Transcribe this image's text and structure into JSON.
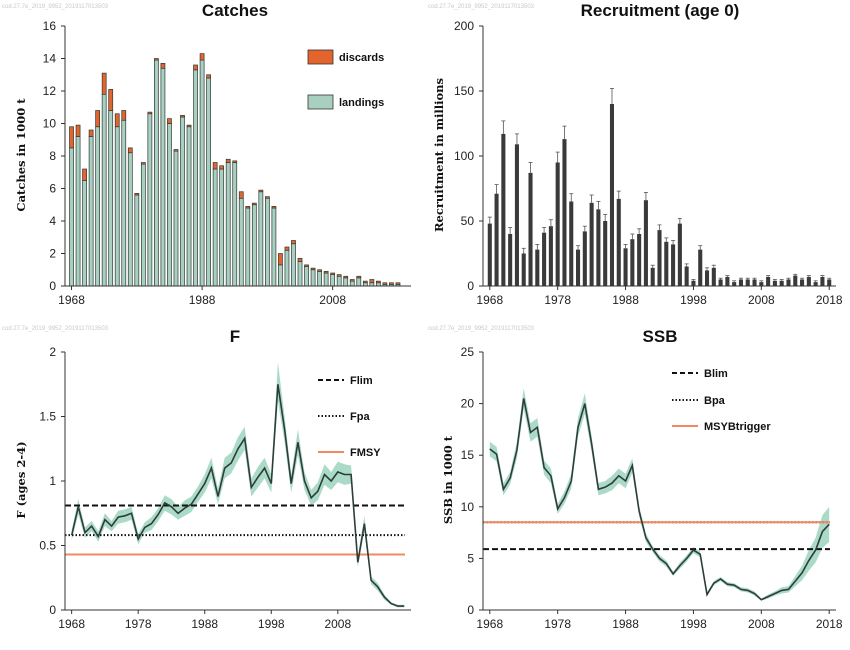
{
  "colors": {
    "landings": "#a9cfc0",
    "discards": "#e3642c",
    "recruitment_bar": "#3a3a3a",
    "band": "#8fcfb6",
    "line": "#2e3d38",
    "msy": "#ef8a62"
  },
  "watermark": "cod.27.7e_2019_9952_2019117013503",
  "chart_data": [
    {
      "id": "catches",
      "type": "bar",
      "title": "Catches",
      "ylabel": "Catches in 1000 t",
      "ylim": [
        0,
        16
      ],
      "yticks": [
        0,
        2,
        4,
        6,
        8,
        10,
        12,
        14,
        16
      ],
      "xticks": [
        "1968",
        "1988",
        "2008"
      ],
      "xrange": [
        1967,
        2020
      ],
      "legend": [
        {
          "name": "discards",
          "color": "#e3642c"
        },
        {
          "name": "landings",
          "color": "#a9cfc0"
        }
      ],
      "x": [
        1968,
        1969,
        1970,
        1971,
        1972,
        1973,
        1974,
        1975,
        1976,
        1977,
        1978,
        1979,
        1980,
        1981,
        1982,
        1983,
        1984,
        1985,
        1986,
        1987,
        1988,
        1989,
        1990,
        1991,
        1992,
        1993,
        1994,
        1995,
        1996,
        1997,
        1998,
        1999,
        2000,
        2001,
        2002,
        2003,
        2004,
        2005,
        2006,
        2007,
        2008,
        2009,
        2010,
        2011,
        2012,
        2013,
        2014,
        2015,
        2016,
        2017,
        2018
      ],
      "series": [
        {
          "name": "landings",
          "values": [
            8.5,
            9.2,
            6.5,
            9.2,
            9.8,
            11.8,
            10.8,
            9.8,
            10.2,
            8.2,
            5.6,
            7.5,
            10.6,
            13.9,
            13.4,
            10.0,
            8.3,
            10.4,
            9.8,
            13.3,
            13.9,
            12.8,
            7.2,
            7.2,
            7.6,
            7.6,
            5.4,
            4.8,
            5.0,
            5.8,
            5.4,
            4.8,
            1.3,
            2.2,
            2.6,
            1.5,
            1.2,
            1.0,
            0.9,
            0.8,
            0.7,
            0.6,
            0.5,
            0.3,
            0.5,
            0.2,
            0.2,
            0.2,
            0.1,
            0.1,
            0.1
          ]
        },
        {
          "name": "discards",
          "values": [
            1.3,
            0.7,
            0.7,
            0.4,
            1.0,
            1.3,
            1.3,
            0.8,
            0.6,
            0.3,
            0.1,
            0.1,
            0.1,
            0.1,
            0.3,
            0.3,
            0.1,
            0.1,
            0.1,
            0.3,
            0.4,
            0.2,
            0.4,
            0.2,
            0.2,
            0.1,
            0.4,
            0.1,
            0.1,
            0.1,
            0.1,
            0.1,
            0.7,
            0.2,
            0.2,
            0.2,
            0.1,
            0.1,
            0.1,
            0.1,
            0.1,
            0.1,
            0.1,
            0.1,
            0.1,
            0.1,
            0.2,
            0.1,
            0.1,
            0.1,
            0.1
          ]
        }
      ]
    },
    {
      "id": "recruitment",
      "type": "bar",
      "title": "Recruitment (age 0)",
      "ylabel": "Recruitment in millions",
      "ylim": [
        0,
        200
      ],
      "yticks": [
        0,
        50,
        100,
        150,
        200
      ],
      "xticks": [
        "1968",
        "1978",
        "1988",
        "1998",
        "2008",
        "2018"
      ],
      "xrange": [
        1967,
        2019
      ],
      "x": [
        1968,
        1969,
        1970,
        1971,
        1972,
        1973,
        1974,
        1975,
        1976,
        1977,
        1978,
        1979,
        1980,
        1981,
        1982,
        1983,
        1984,
        1985,
        1986,
        1987,
        1988,
        1989,
        1990,
        1991,
        1992,
        1993,
        1994,
        1995,
        1996,
        1997,
        1998,
        1999,
        2000,
        2001,
        2002,
        2003,
        2004,
        2005,
        2006,
        2007,
        2008,
        2009,
        2010,
        2011,
        2012,
        2013,
        2014,
        2015,
        2016,
        2017,
        2018
      ],
      "values": [
        48,
        71,
        117,
        40,
        109,
        25,
        87,
        28,
        41,
        46,
        95,
        113,
        65,
        28,
        42,
        64,
        59,
        50,
        140,
        67,
        29,
        36,
        40,
        66,
        14,
        43,
        34,
        32,
        48,
        15,
        4,
        28,
        12,
        14,
        5,
        7,
        3,
        5,
        5,
        5,
        3,
        7,
        4,
        4,
        5,
        8,
        5,
        7,
        3,
        7,
        5
      ],
      "errors": [
        5,
        7,
        10,
        5,
        8,
        4,
        8,
        4,
        4,
        5,
        8,
        10,
        6,
        3,
        4,
        6,
        6,
        5,
        12,
        6,
        3,
        4,
        4,
        6,
        2,
        4,
        3,
        3,
        4,
        2,
        1,
        3,
        2,
        2,
        1,
        1,
        1,
        1,
        1,
        1,
        1,
        1,
        1,
        1,
        1,
        1,
        1,
        1,
        1,
        1,
        1
      ]
    },
    {
      "id": "fishing-mortality",
      "type": "line",
      "title": "F",
      "ylabel": "F (ages 2-4)",
      "ylim": [
        0,
        2
      ],
      "yticks": [
        0,
        0.5,
        1,
        1.5,
        2
      ],
      "ytick_labels": [
        "0",
        "0.5",
        "1",
        "1.5",
        "2"
      ],
      "xticks": [
        "1968",
        "1978",
        "1988",
        "1998",
        "2008"
      ],
      "xrange": [
        1967,
        2019
      ],
      "legend": [
        {
          "name": "Flim",
          "style": "dashed"
        },
        {
          "name": "Fpa",
          "style": "dotted"
        },
        {
          "name": "FMSY",
          "style": "solid-orange"
        }
      ],
      "reference_lines": {
        "Flim": 0.81,
        "Fpa": 0.58,
        "FMSY": 0.43
      },
      "x": [
        1968,
        1969,
        1970,
        1971,
        1972,
        1973,
        1974,
        1975,
        1976,
        1977,
        1978,
        1979,
        1980,
        1981,
        1982,
        1983,
        1984,
        1985,
        1986,
        1987,
        1988,
        1989,
        1990,
        1991,
        1992,
        1993,
        1994,
        1995,
        1996,
        1997,
        1998,
        1999,
        2000,
        2001,
        2002,
        2003,
        2004,
        2005,
        2006,
        2007,
        2008,
        2009,
        2010,
        2011,
        2012,
        2013,
        2014,
        2015,
        2016,
        2017,
        2018
      ],
      "values": [
        0.58,
        0.8,
        0.6,
        0.65,
        0.57,
        0.7,
        0.65,
        0.72,
        0.73,
        0.75,
        0.55,
        0.64,
        0.67,
        0.74,
        0.83,
        0.8,
        0.75,
        0.79,
        0.82,
        0.9,
        0.98,
        1.1,
        0.88,
        1.1,
        1.14,
        1.25,
        1.33,
        0.95,
        1.03,
        1.1,
        0.98,
        1.75,
        1.4,
        0.98,
        1.3,
        1.0,
        0.87,
        0.92,
        1.05,
        1.0,
        1.07,
        1.05,
        1.05,
        0.37,
        0.67,
        0.23,
        0.18,
        0.1,
        0.05,
        0.03,
        0.03
      ],
      "lower": [
        0.54,
        0.74,
        0.56,
        0.61,
        0.53,
        0.65,
        0.61,
        0.67,
        0.68,
        0.7,
        0.51,
        0.6,
        0.62,
        0.69,
        0.77,
        0.74,
        0.7,
        0.73,
        0.76,
        0.84,
        0.91,
        1.02,
        0.82,
        1.02,
        1.06,
        1.16,
        1.24,
        0.88,
        0.95,
        1.02,
        0.91,
        1.62,
        1.3,
        0.91,
        1.2,
        0.93,
        0.81,
        0.85,
        0.97,
        0.93,
        0.99,
        0.97,
        0.98,
        0.33,
        0.61,
        0.2,
        0.15,
        0.08,
        0.04,
        0.02,
        0.02
      ],
      "upper": [
        0.62,
        0.86,
        0.64,
        0.69,
        0.61,
        0.75,
        0.69,
        0.77,
        0.78,
        0.8,
        0.59,
        0.68,
        0.72,
        0.79,
        0.89,
        0.86,
        0.8,
        0.85,
        0.88,
        0.96,
        1.05,
        1.18,
        0.94,
        1.18,
        1.22,
        1.34,
        1.42,
        1.02,
        1.11,
        1.18,
        1.05,
        1.92,
        1.5,
        1.05,
        1.4,
        1.07,
        0.93,
        0.99,
        1.13,
        1.07,
        1.15,
        1.13,
        1.12,
        0.41,
        0.73,
        0.26,
        0.21,
        0.12,
        0.06,
        0.04,
        0.04
      ]
    },
    {
      "id": "ssb",
      "type": "line",
      "title": "SSB",
      "ylabel": "SSB in 1000 t",
      "ylim": [
        0,
        25
      ],
      "yticks": [
        0,
        5,
        10,
        15,
        20,
        25
      ],
      "xticks": [
        "1968",
        "1978",
        "1988",
        "1998",
        "2008",
        "2018"
      ],
      "xrange": [
        1967,
        2019
      ],
      "legend": [
        {
          "name": "Blim",
          "style": "dashed"
        },
        {
          "name": "Bpa",
          "style": "dotted"
        },
        {
          "name": "MSYBtrigger",
          "style": "solid-orange"
        }
      ],
      "reference_lines": {
        "Blim": 5.9,
        "Bpa": 8.5,
        "MSYBtrigger": 8.5
      },
      "x": [
        1968,
        1969,
        1970,
        1971,
        1972,
        1973,
        1974,
        1975,
        1976,
        1977,
        1978,
        1979,
        1980,
        1981,
        1982,
        1983,
        1984,
        1985,
        1986,
        1987,
        1988,
        1989,
        1990,
        1991,
        1992,
        1993,
        1994,
        1995,
        1996,
        1997,
        1998,
        1999,
        2000,
        2001,
        2002,
        2003,
        2004,
        2005,
        2006,
        2007,
        2008,
        2009,
        2010,
        2011,
        2012,
        2013,
        2014,
        2015,
        2016,
        2017,
        2018
      ],
      "values": [
        15.6,
        15.1,
        11.7,
        12.8,
        15.5,
        20.5,
        17.2,
        17.7,
        13.8,
        13.0,
        9.8,
        10.9,
        12.5,
        17.7,
        20.0,
        16.1,
        11.7,
        11.9,
        12.3,
        13.0,
        12.5,
        14.0,
        9.6,
        7.0,
        5.9,
        5.0,
        4.5,
        3.5,
        4.3,
        5.0,
        5.8,
        5.4,
        1.5,
        2.6,
        3.0,
        2.5,
        2.4,
        2.0,
        1.9,
        1.6,
        1.0,
        1.3,
        1.6,
        1.9,
        2.0,
        2.8,
        3.6,
        4.8,
        5.8,
        7.6,
        8.3
      ],
      "lower": [
        14.9,
        14.4,
        11.1,
        12.2,
        14.7,
        19.5,
        16.3,
        16.8,
        13.1,
        12.3,
        9.3,
        10.3,
        11.8,
        16.8,
        19.0,
        15.3,
        11.1,
        11.3,
        11.6,
        12.3,
        11.8,
        13.3,
        9.1,
        6.6,
        5.6,
        4.7,
        4.2,
        3.3,
        4.0,
        4.7,
        5.5,
        5.1,
        1.3,
        2.4,
        2.8,
        2.3,
        2.2,
        1.8,
        1.7,
        1.4,
        0.9,
        1.1,
        1.4,
        1.6,
        1.7,
        2.3,
        2.9,
        3.8,
        4.6,
        6.0,
        6.6
      ],
      "upper": [
        16.3,
        15.8,
        12.3,
        13.4,
        16.3,
        21.5,
        18.1,
        18.6,
        14.5,
        13.7,
        10.3,
        11.5,
        13.2,
        18.6,
        21.0,
        16.9,
        12.3,
        12.5,
        13.0,
        13.7,
        13.2,
        14.7,
        10.1,
        7.4,
        6.2,
        5.3,
        4.8,
        3.7,
        4.6,
        5.3,
        6.1,
        5.7,
        1.7,
        2.8,
        3.2,
        2.7,
        2.6,
        2.2,
        2.1,
        1.8,
        1.1,
        1.5,
        1.8,
        2.2,
        2.3,
        3.3,
        4.3,
        5.8,
        7.0,
        9.2,
        10.0
      ]
    }
  ]
}
